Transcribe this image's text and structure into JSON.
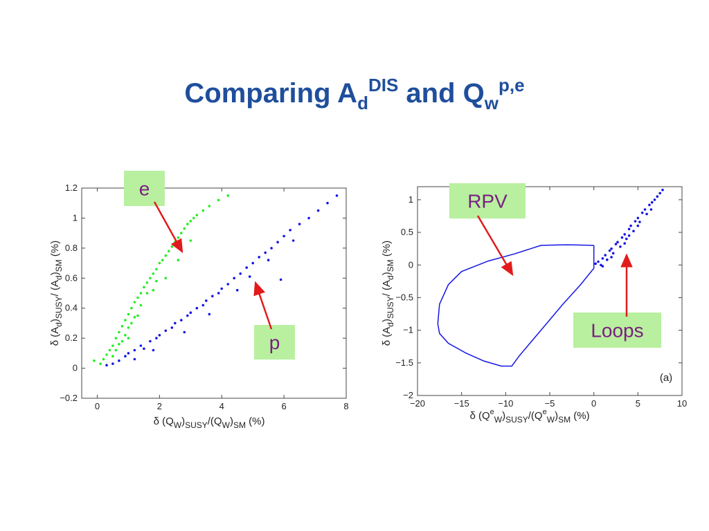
{
  "slide": {
    "title_main": "Comparing A",
    "title_sub1": "d",
    "title_sup1": "DIS",
    "title_mid": " and Q",
    "title_sub2": "w",
    "title_sup2": "p,e"
  },
  "colors": {
    "title": "#1f4e9c",
    "green": "#22ee22",
    "blue": "#1515e6",
    "arrow": "#e11b1b",
    "callout_bg": "#b8f0a0",
    "callout_text": "#7a1f80"
  },
  "chart_data": [
    {
      "type": "scatter",
      "xlim": [
        -0.5,
        8
      ],
      "ylim": [
        -0.2,
        1.2
      ],
      "xticks": [
        0,
        2,
        4,
        6,
        8
      ],
      "yticks": [
        -0.2,
        0,
        0.2,
        0.4,
        0.6,
        0.8,
        1,
        1.2
      ],
      "xtick_labels": [
        "0",
        "2",
        "4",
        "6",
        "8"
      ],
      "ytick_labels": [
        "−0.2",
        "0",
        "0.2",
        "0.4",
        "0.6",
        "0.8",
        "1",
        "1.2"
      ],
      "xlabel": {
        "prefix": "δ (Q",
        "s1": "W",
        "mid": ")",
        "s2": "SUSY",
        "mid2": "/(Q",
        "s3": "W",
        "mid3": ")",
        "s4": "SM",
        "suffix": "  (%)"
      },
      "ylabel": {
        "prefix": "δ (A",
        "s1": "d",
        "mid": ")",
        "s2": "SUSY",
        "mid2": "/ (A",
        "s3": "d",
        "mid3": ")",
        "s4": "SM",
        "suffix": "     (%)"
      },
      "grid": false,
      "series": [
        {
          "name": "e",
          "color": "#22ee22",
          "points": [
            [
              -0.1,
              0.05
            ],
            [
              0.1,
              0.03
            ],
            [
              0.2,
              0.06
            ],
            [
              0.3,
              0.09
            ],
            [
              0.4,
              0.12
            ],
            [
              0.5,
              0.15
            ],
            [
              0.5,
              0.08
            ],
            [
              0.6,
              0.2
            ],
            [
              0.6,
              0.12
            ],
            [
              0.7,
              0.24
            ],
            [
              0.7,
              0.16
            ],
            [
              0.8,
              0.28
            ],
            [
              0.8,
              0.18
            ],
            [
              0.9,
              0.32
            ],
            [
              0.9,
              0.22
            ],
            [
              1.0,
              0.36
            ],
            [
              1.0,
              0.27
            ],
            [
              1.1,
              0.4
            ],
            [
              1.1,
              0.3
            ],
            [
              1.2,
              0.44
            ],
            [
              1.2,
              0.34
            ],
            [
              1.3,
              0.47
            ],
            [
              1.4,
              0.5
            ],
            [
              1.4,
              0.42
            ],
            [
              1.5,
              0.54
            ],
            [
              1.6,
              0.57
            ],
            [
              1.6,
              0.5
            ],
            [
              1.7,
              0.6
            ],
            [
              1.8,
              0.63
            ],
            [
              1.9,
              0.66
            ],
            [
              1.9,
              0.58
            ],
            [
              2.0,
              0.7
            ],
            [
              2.1,
              0.72
            ],
            [
              2.2,
              0.75
            ],
            [
              2.3,
              0.78
            ],
            [
              2.4,
              0.81
            ],
            [
              2.5,
              0.84
            ],
            [
              2.6,
              0.87
            ],
            [
              2.7,
              0.9
            ],
            [
              2.8,
              0.93
            ],
            [
              2.9,
              0.96
            ],
            [
              3.0,
              0.98
            ],
            [
              3.1,
              1.0
            ],
            [
              3.2,
              1.02
            ],
            [
              3.4,
              1.05
            ],
            [
              3.6,
              1.08
            ],
            [
              3.9,
              1.12
            ],
            [
              4.2,
              1.15
            ],
            [
              1.0,
              0.2
            ],
            [
              1.3,
              0.35
            ],
            [
              1.8,
              0.52
            ],
            [
              2.2,
              0.6
            ],
            [
              2.6,
              0.72
            ],
            [
              3.0,
              0.85
            ]
          ]
        },
        {
          "name": "p",
          "color": "#1515e6",
          "points": [
            [
              0.3,
              0.02
            ],
            [
              0.5,
              0.03
            ],
            [
              0.7,
              0.05
            ],
            [
              0.9,
              0.08
            ],
            [
              1.0,
              0.1
            ],
            [
              1.2,
              0.12
            ],
            [
              1.4,
              0.15
            ],
            [
              1.5,
              0.13
            ],
            [
              1.7,
              0.18
            ],
            [
              1.9,
              0.2
            ],
            [
              2.0,
              0.22
            ],
            [
              2.2,
              0.25
            ],
            [
              2.4,
              0.27
            ],
            [
              2.5,
              0.3
            ],
            [
              2.7,
              0.32
            ],
            [
              2.9,
              0.35
            ],
            [
              3.0,
              0.37
            ],
            [
              3.2,
              0.4
            ],
            [
              3.4,
              0.42
            ],
            [
              3.5,
              0.45
            ],
            [
              3.7,
              0.48
            ],
            [
              3.9,
              0.5
            ],
            [
              4.0,
              0.53
            ],
            [
              4.2,
              0.56
            ],
            [
              4.4,
              0.6
            ],
            [
              4.6,
              0.63
            ],
            [
              4.8,
              0.67
            ],
            [
              5.0,
              0.7
            ],
            [
              5.2,
              0.74
            ],
            [
              5.4,
              0.77
            ],
            [
              5.6,
              0.8
            ],
            [
              5.8,
              0.84
            ],
            [
              6.0,
              0.88
            ],
            [
              6.2,
              0.92
            ],
            [
              6.5,
              0.96
            ],
            [
              6.8,
              1.0
            ],
            [
              7.1,
              1.05
            ],
            [
              7.4,
              1.1
            ],
            [
              7.7,
              1.15
            ],
            [
              5.9,
              0.59
            ],
            [
              4.5,
              0.52
            ],
            [
              3.6,
              0.36
            ],
            [
              2.8,
              0.24
            ],
            [
              1.8,
              0.12
            ],
            [
              1.2,
              0.06
            ],
            [
              6.3,
              0.85
            ],
            [
              5.5,
              0.72
            ],
            [
              4.9,
              0.61
            ]
          ]
        }
      ],
      "callouts": [
        {
          "label": "e"
        },
        {
          "label": "p"
        }
      ]
    },
    {
      "type": "line",
      "xlim": [
        -20,
        10
      ],
      "ylim": [
        -2,
        1.2
      ],
      "xticks": [
        -20,
        -15,
        -10,
        -5,
        0,
        5,
        10
      ],
      "yticks": [
        -2,
        -1.5,
        -1,
        -0.5,
        0,
        0.5,
        1
      ],
      "xtick_labels": [
        "−20",
        "−15",
        "−10",
        "−5",
        "0",
        "5",
        "10"
      ],
      "ytick_labels": [
        "−2",
        "−1.5",
        "−1",
        "−0.5",
        "0",
        "0.5",
        "1"
      ],
      "xlabel": {
        "prefix": "δ (Q",
        "sup1": "e",
        "s1": "W",
        "mid": ")",
        "s2": "SUSY",
        "mid2": "/(Q",
        "sup2": "e",
        "s3": "W",
        "mid3": ")",
        "s4": "SM",
        "suffix": "  (%)"
      },
      "ylabel": {
        "prefix": "δ (A",
        "s1": "d",
        "mid": ")",
        "s2": "SUSY",
        "mid2": "/ (A",
        "s3": "d",
        "mid3": ")",
        "s4": "SM",
        "suffix": "     (%)"
      },
      "panel_label": "(a)",
      "grid": false,
      "series": [
        {
          "name": "RPV",
          "color": "#1515e6",
          "points": [
            [
              0,
              0.3
            ],
            [
              -3,
              0.31
            ],
            [
              -6,
              0.3
            ],
            [
              -9,
              0.17
            ],
            [
              -12,
              0.06
            ],
            [
              -15,
              -0.1
            ],
            [
              -16.5,
              -0.3
            ],
            [
              -17.5,
              -0.6
            ],
            [
              -17.7,
              -0.9
            ],
            [
              -17.5,
              -1.05
            ],
            [
              -16.5,
              -1.2
            ],
            [
              -14.5,
              -1.35
            ],
            [
              -12.5,
              -1.47
            ],
            [
              -10.5,
              -1.55
            ],
            [
              -9.3,
              -1.55
            ],
            [
              -8.5,
              -1.4
            ],
            [
              -6,
              -1.0
            ],
            [
              -3.5,
              -0.6
            ],
            [
              -1.5,
              -0.3
            ],
            [
              0,
              -0.05
            ],
            [
              0,
              0.3
            ]
          ]
        },
        {
          "name": "Loops",
          "color": "#1515e6",
          "points": [
            [
              0.2,
              0.02
            ],
            [
              0.5,
              0.05
            ],
            [
              0.8,
              0.0
            ],
            [
              1.0,
              0.1
            ],
            [
              1.3,
              0.15
            ],
            [
              1.5,
              0.08
            ],
            [
              1.8,
              0.22
            ],
            [
              2.0,
              0.25
            ],
            [
              2.2,
              0.18
            ],
            [
              2.5,
              0.32
            ],
            [
              2.7,
              0.35
            ],
            [
              3.0,
              0.28
            ],
            [
              3.2,
              0.42
            ],
            [
              3.5,
              0.47
            ],
            [
              3.7,
              0.4
            ],
            [
              4.0,
              0.55
            ],
            [
              4.2,
              0.6
            ],
            [
              4.5,
              0.52
            ],
            [
              4.7,
              0.67
            ],
            [
              5.0,
              0.72
            ],
            [
              5.2,
              0.66
            ],
            [
              5.5,
              0.8
            ],
            [
              5.8,
              0.85
            ],
            [
              6.0,
              0.78
            ],
            [
              6.3,
              0.92
            ],
            [
              6.6,
              0.96
            ],
            [
              6.9,
              1.0
            ],
            [
              7.2,
              1.05
            ],
            [
              7.5,
              1.1
            ],
            [
              7.8,
              1.15
            ],
            [
              2.0,
              0.12
            ],
            [
              3.5,
              0.33
            ],
            [
              5.0,
              0.6
            ],
            [
              6.5,
              0.85
            ],
            [
              1.0,
              -0.02
            ],
            [
              4.0,
              0.45
            ]
          ]
        }
      ],
      "callouts": [
        {
          "label": "RPV"
        },
        {
          "label": "Loops"
        }
      ]
    }
  ]
}
